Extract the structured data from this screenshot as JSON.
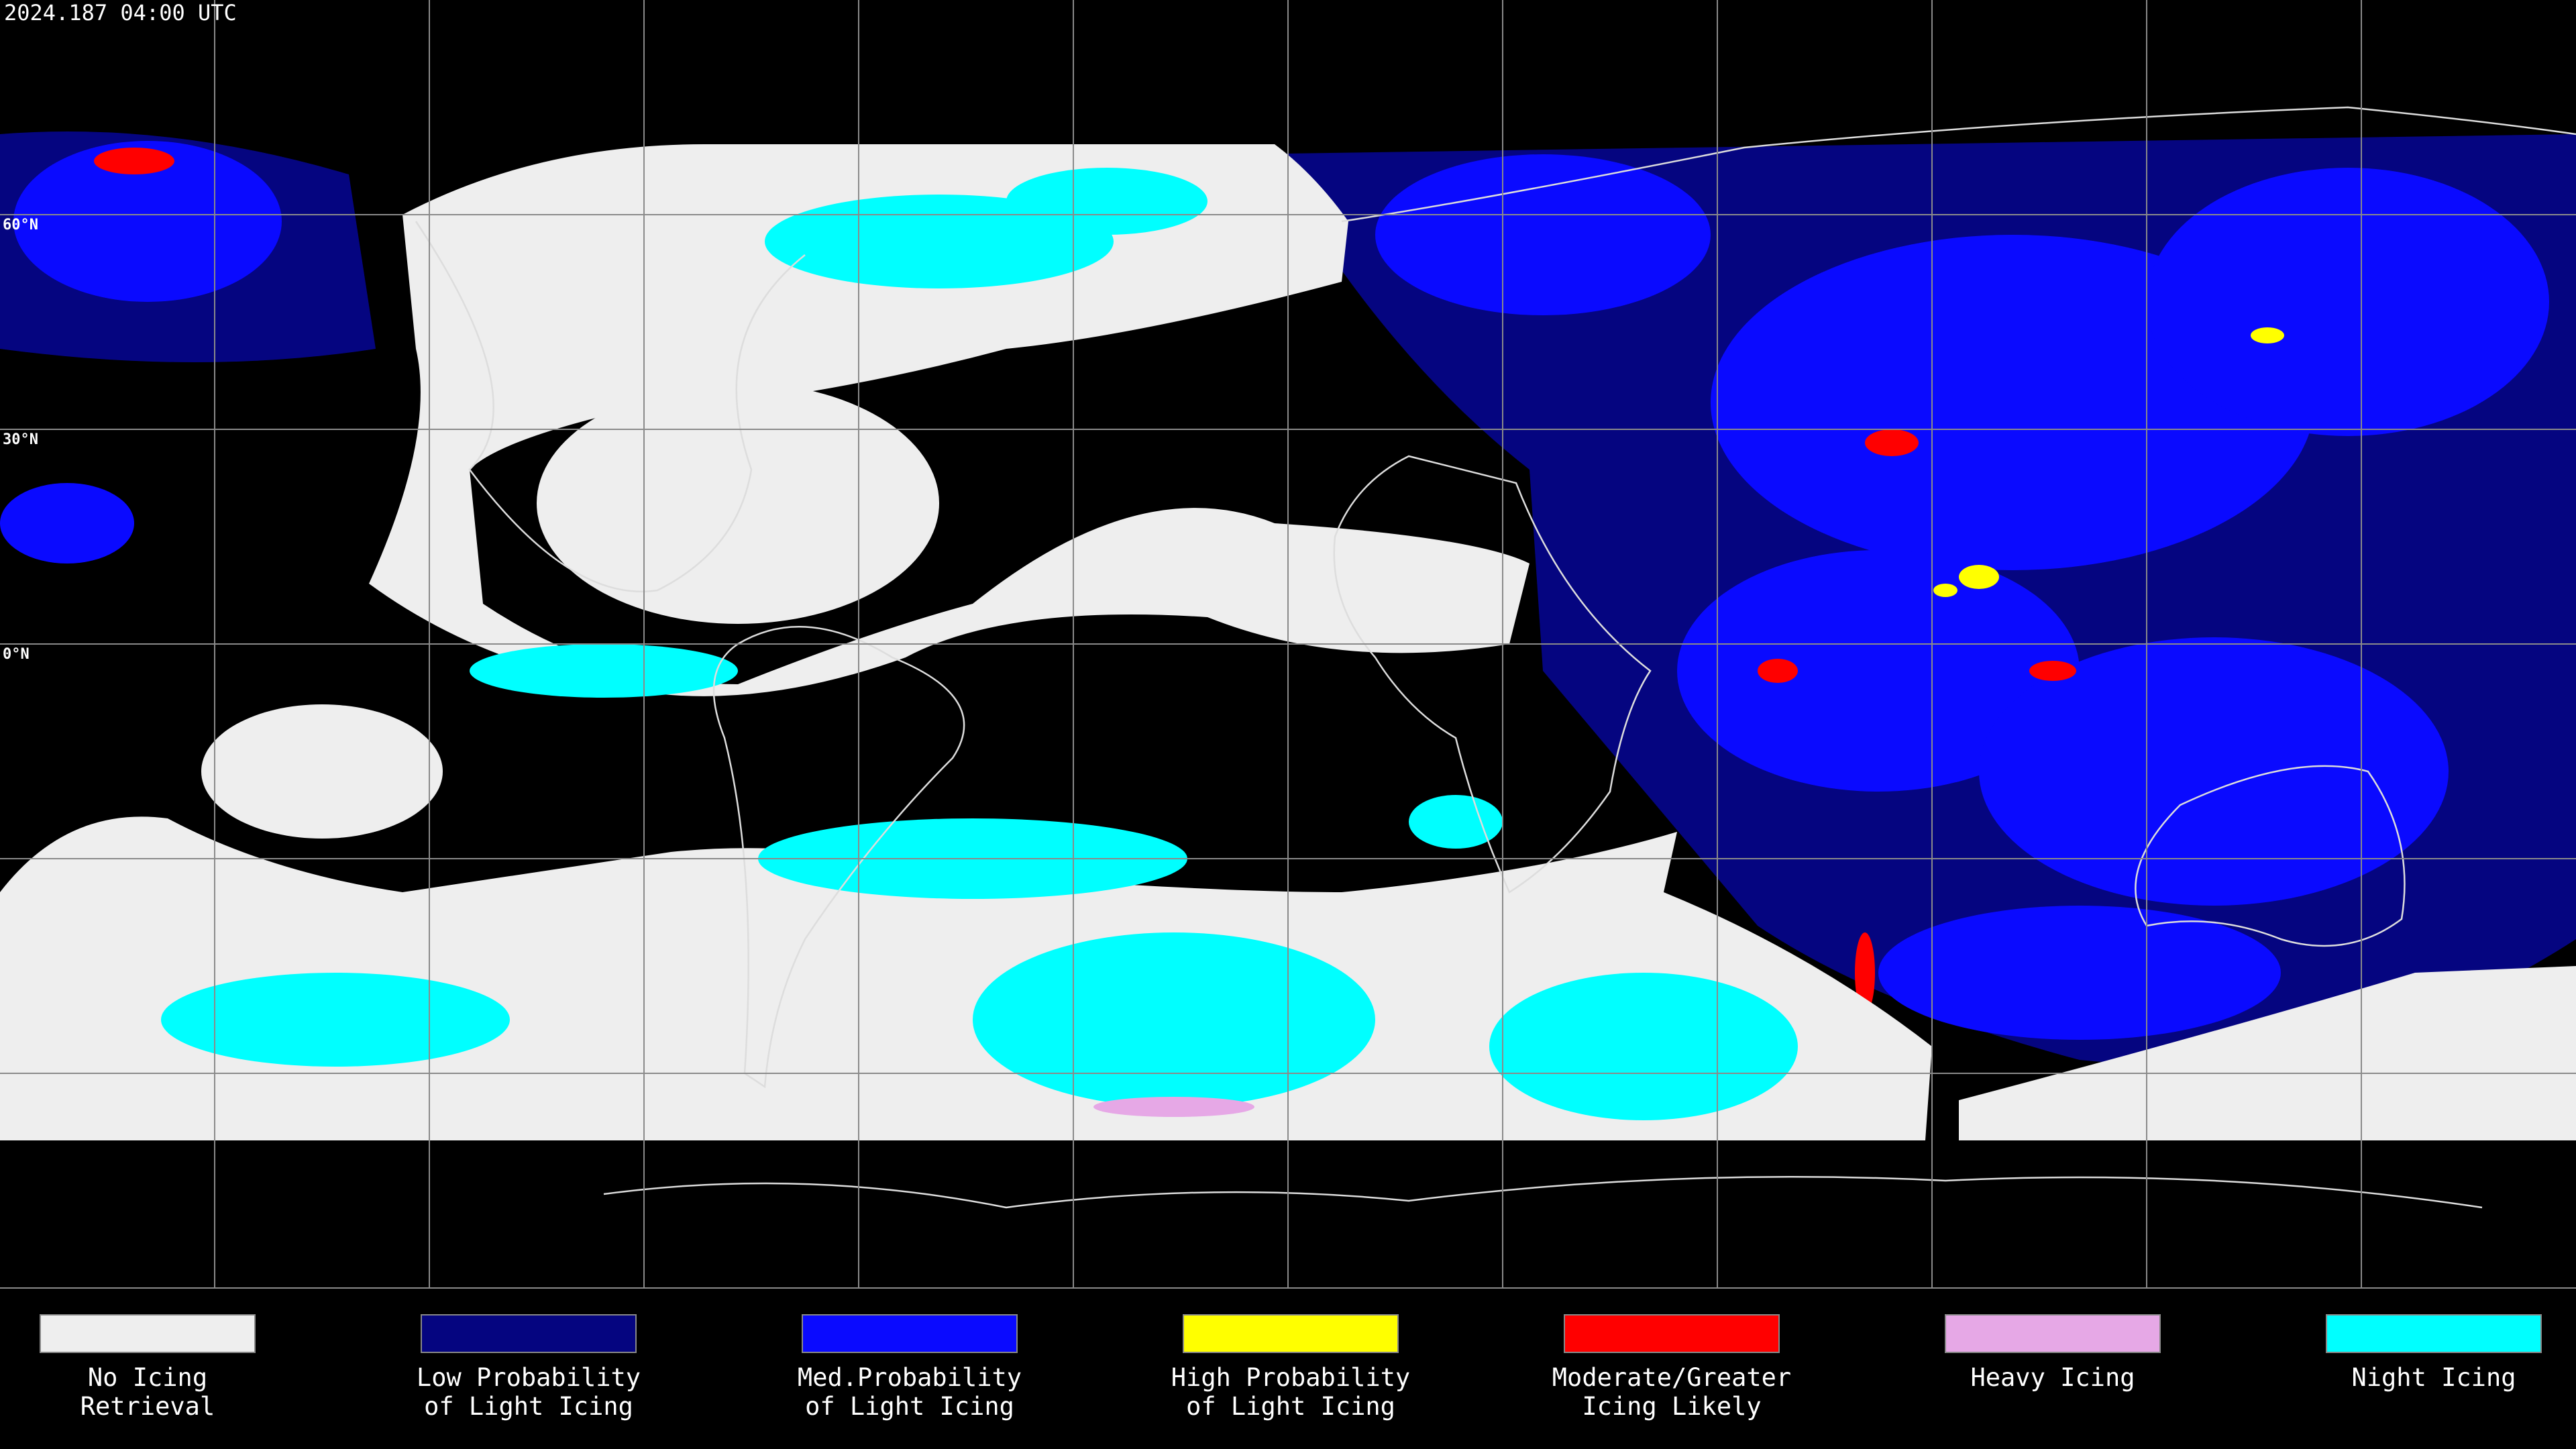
{
  "title": "2024.187 04:00 UTC",
  "latitude_labels": [
    "60°N",
    "30°N",
    "0°N"
  ],
  "legend": [
    {
      "label": [
        "No Icing",
        "Retrieval"
      ],
      "color": "#eeeeee"
    },
    {
      "label": [
        "Low Probability",
        "of Light Icing"
      ],
      "color": "#050580"
    },
    {
      "label": [
        "Med.Probability",
        "of Light Icing"
      ],
      "color": "#0a0aff"
    },
    {
      "label": [
        "High Probability",
        "of Light Icing"
      ],
      "color": "#ffff00"
    },
    {
      "label": [
        "Moderate/Greater",
        "Icing Likely"
      ],
      "color": "#ff0000"
    },
    {
      "label": [
        "Heavy Icing"
      ],
      "color": "#e6a8e6"
    },
    {
      "label": [
        "Night Icing"
      ],
      "color": "#00ffff"
    }
  ]
}
